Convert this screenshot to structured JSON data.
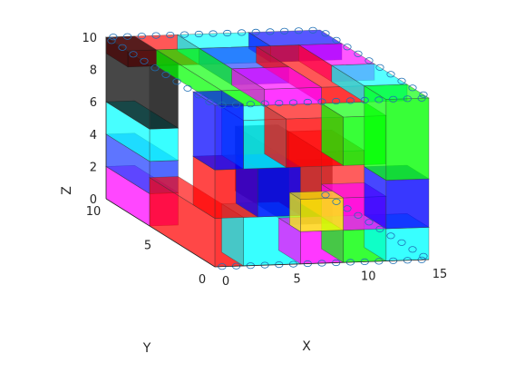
{
  "chart_data": {
    "type": "3d-voxel",
    "title": "",
    "xlabel": "X",
    "ylabel": "Y",
    "zlabel": "Z",
    "xlim": [
      0,
      15
    ],
    "ylim": [
      0,
      10
    ],
    "zlim": [
      0,
      10
    ],
    "xticks": [
      "0",
      "5",
      "10",
      "15"
    ],
    "yticks": [
      "0",
      "5",
      "10"
    ],
    "zticks": [
      "0",
      "2",
      "4",
      "6",
      "8",
      "10"
    ],
    "grid": false,
    "legend": "none",
    "palette": [
      "#ff0000",
      "#00ff00",
      "#0000ff",
      "#00ffff",
      "#ff00ff",
      "#ffff00",
      "#000000",
      "#ff3030",
      "#2040ff",
      "#20ff40"
    ],
    "blocks": [
      {
        "x": [
          0,
          2
        ],
        "y": [
          0,
          6
        ],
        "z": [
          0,
          3
        ],
        "color": "#ff0000"
      },
      {
        "x": [
          2,
          6
        ],
        "y": [
          0,
          2
        ],
        "z": [
          0,
          3
        ],
        "color": "#00ffff"
      },
      {
        "x": [
          6,
          9
        ],
        "y": [
          0,
          2
        ],
        "z": [
          0,
          2
        ],
        "color": "#ff00ff"
      },
      {
        "x": [
          9,
          12
        ],
        "y": [
          0,
          2
        ],
        "z": [
          0,
          2
        ],
        "color": "#00ff00"
      },
      {
        "x": [
          12,
          15
        ],
        "y": [
          0,
          2
        ],
        "z": [
          0,
          2
        ],
        "color": "#00ffff"
      },
      {
        "x": [
          0,
          3
        ],
        "y": [
          0,
          2
        ],
        "z": [
          3,
          6
        ],
        "color": "#ff0000"
      },
      {
        "x": [
          3,
          6
        ],
        "y": [
          0,
          2
        ],
        "z": [
          3,
          6
        ],
        "color": "#0000ff"
      },
      {
        "x": [
          6,
          9
        ],
        "y": [
          0,
          1
        ],
        "z": [
          2,
          4
        ],
        "color": "#ffff00"
      },
      {
        "x": [
          9,
          12
        ],
        "y": [
          0,
          2
        ],
        "z": [
          2,
          4
        ],
        "color": "#ff00ff"
      },
      {
        "x": [
          12,
          15
        ],
        "y": [
          0,
          2
        ],
        "z": [
          2,
          5
        ],
        "color": "#0000ff"
      },
      {
        "x": [
          0,
          2
        ],
        "y": [
          0,
          2
        ],
        "z": [
          6,
          10
        ],
        "color": "#0000ff"
      },
      {
        "x": [
          2,
          5
        ],
        "y": [
          0,
          2
        ],
        "z": [
          6,
          9
        ],
        "color": "#00ffff"
      },
      {
        "x": [
          5,
          9
        ],
        "y": [
          0,
          2
        ],
        "z": [
          6,
          9
        ],
        "color": "#ff0000"
      },
      {
        "x": [
          9,
          12
        ],
        "y": [
          0,
          2
        ],
        "z": [
          6,
          9
        ],
        "color": "#00ff00"
      },
      {
        "x": [
          12,
          15
        ],
        "y": [
          0,
          2
        ],
        "z": [
          5,
          10
        ],
        "color": "#00ff00"
      },
      {
        "x": [
          6,
          9
        ],
        "y": [
          1,
          6
        ],
        "z": [
          2,
          6
        ],
        "color": "#000000"
      },
      {
        "x": [
          9,
          12
        ],
        "y": [
          2,
          5
        ],
        "z": [
          2,
          6
        ],
        "color": "#ff3030"
      },
      {
        "x": [
          0,
          2
        ],
        "y": [
          6,
          10
        ],
        "z": [
          0,
          2
        ],
        "color": "#ff00ff"
      },
      {
        "x": [
          0,
          2
        ],
        "y": [
          6,
          10
        ],
        "z": [
          2,
          4
        ],
        "color": "#2040ff"
      },
      {
        "x": [
          0,
          2
        ],
        "y": [
          6,
          10
        ],
        "z": [
          4,
          6
        ],
        "color": "#00ffff"
      },
      {
        "x": [
          0,
          2
        ],
        "y": [
          6,
          10
        ],
        "z": [
          6,
          10
        ],
        "color": "#000000"
      },
      {
        "x": [
          0,
          5
        ],
        "y": [
          8,
          10
        ],
        "z": [
          9,
          10
        ],
        "color": "#ff0000"
      },
      {
        "x": [
          5,
          10
        ],
        "y": [
          8,
          10
        ],
        "z": [
          9,
          10
        ],
        "color": "#00ffff"
      },
      {
        "x": [
          10,
          15
        ],
        "y": [
          8,
          10
        ],
        "z": [
          9,
          10
        ],
        "color": "#0000ff"
      },
      {
        "x": [
          2,
          5
        ],
        "y": [
          2,
          8
        ],
        "z": [
          9,
          10
        ],
        "color": "#00ff00"
      },
      {
        "x": [
          5,
          9
        ],
        "y": [
          2,
          5
        ],
        "z": [
          9,
          10
        ],
        "color": "#ff00ff"
      },
      {
        "x": [
          5,
          9
        ],
        "y": [
          5,
          8
        ],
        "z": [
          9,
          10
        ],
        "color": "#2040ff"
      },
      {
        "x": [
          9,
          12
        ],
        "y": [
          2,
          8
        ],
        "z": [
          9,
          10
        ],
        "color": "#ff0000"
      },
      {
        "x": [
          12,
          15
        ],
        "y": [
          2,
          5
        ],
        "z": [
          9,
          10
        ],
        "color": "#00ffff"
      },
      {
        "x": [
          12,
          15
        ],
        "y": [
          5,
          8
        ],
        "z": [
          9,
          10
        ],
        "color": "#ff00ff"
      }
    ]
  }
}
